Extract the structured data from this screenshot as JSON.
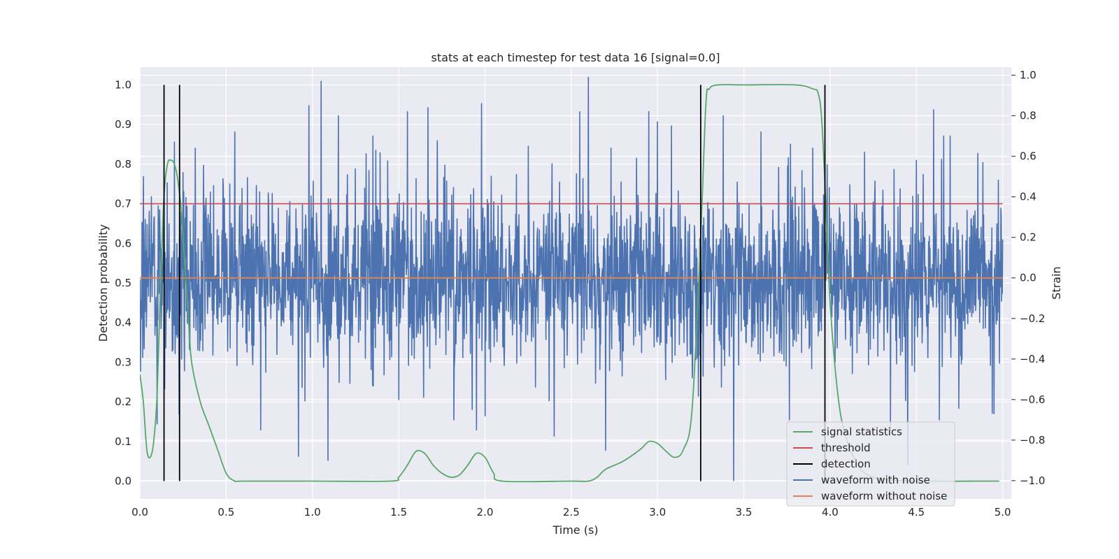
{
  "chart_data": {
    "type": "line",
    "title": "stats at each timestep for test data 16 [signal=0.0]",
    "xlabel": "Time (s)",
    "ylabel_left": "Detection probability",
    "ylabel_right": "Strain",
    "xlim": [
      0.0,
      5.05
    ],
    "ylim_left": [
      -0.045,
      1.045
    ],
    "ylim_right": [
      -1.09,
      1.04
    ],
    "x_ticks": [
      "0.0",
      "0.5",
      "1.0",
      "1.5",
      "2.0",
      "2.5",
      "3.0",
      "3.5",
      "4.0",
      "4.5",
      "5.0"
    ],
    "y_ticks_left": [
      "0.0",
      "0.1",
      "0.2",
      "0.3",
      "0.4",
      "0.5",
      "0.6",
      "0.7",
      "0.8",
      "0.9",
      "1.0"
    ],
    "y_ticks_right": [
      "−1.0",
      "−0.8",
      "−0.6",
      "−0.4",
      "−0.2",
      "0.0",
      "0.2",
      "0.4",
      "0.6",
      "0.8",
      "1.0"
    ],
    "grid": true,
    "legend_position": "lower right",
    "series": [
      {
        "name": "signal statistics",
        "axis": "left",
        "color": "#55a868",
        "x": [
          0.0,
          0.02,
          0.04,
          0.06,
          0.08,
          0.1,
          0.12,
          0.14,
          0.16,
          0.18,
          0.2,
          0.22,
          0.24,
          0.26,
          0.28,
          0.3,
          0.35,
          0.4,
          0.45,
          0.5,
          0.55,
          0.6,
          1.0,
          1.45,
          1.5,
          1.55,
          1.6,
          1.65,
          1.7,
          1.75,
          1.8,
          1.85,
          1.9,
          1.95,
          2.0,
          2.05,
          2.1,
          2.5,
          2.6,
          2.65,
          2.7,
          2.8,
          2.9,
          2.95,
          3.0,
          3.05,
          3.1,
          3.15,
          3.2,
          3.25,
          3.28,
          3.3,
          3.35,
          3.5,
          3.8,
          3.9,
          3.93,
          3.95,
          3.97,
          4.0,
          4.05,
          4.1,
          4.15,
          4.2,
          4.3,
          4.5,
          4.9,
          4.98
        ],
        "values": [
          0.27,
          0.2,
          0.08,
          0.06,
          0.1,
          0.22,
          0.5,
          0.72,
          0.8,
          0.81,
          0.8,
          0.76,
          0.68,
          0.55,
          0.42,
          0.3,
          0.2,
          0.14,
          0.08,
          0.02,
          0.0,
          0.0,
          0.0,
          0.0,
          0.01,
          0.04,
          0.075,
          0.07,
          0.04,
          0.02,
          0.01,
          0.015,
          0.04,
          0.07,
          0.06,
          0.02,
          0.0,
          0.0,
          0.0,
          0.01,
          0.03,
          0.05,
          0.08,
          0.1,
          0.095,
          0.075,
          0.06,
          0.08,
          0.18,
          0.62,
          0.95,
          0.99,
          1.0,
          1.0,
          1.0,
          0.99,
          0.98,
          0.92,
          0.75,
          0.45,
          0.2,
          0.1,
          0.05,
          0.02,
          0.005,
          0.0,
          0.0,
          0.0
        ]
      },
      {
        "name": "threshold",
        "axis": "left",
        "color": "#c44e52",
        "x": [
          0.0,
          5.0
        ],
        "values": [
          0.7,
          0.7
        ]
      },
      {
        "name": "detection",
        "axis": "left",
        "color": "#000000",
        "vlines_x": [
          0.14,
          0.23,
          3.25,
          3.97
        ],
        "vlines_range": [
          0.0,
          1.0
        ]
      },
      {
        "name": "waveform with noise",
        "axis": "right",
        "color": "#4c72b0",
        "x_range": [
          0.0,
          5.0
        ],
        "envelope": [
          -1.0,
          1.0
        ],
        "typical_amplitude": 0.35,
        "x": [
          0.02,
          0.1,
          0.2,
          0.25,
          0.32,
          0.55,
          0.7,
          0.92,
          0.98,
          1.05,
          1.09,
          1.15,
          1.35,
          1.5,
          1.55,
          1.67,
          1.82,
          1.95,
          1.98,
          2.0,
          2.25,
          2.4,
          2.55,
          2.6,
          2.7,
          2.73,
          2.95,
          3.0,
          3.08,
          3.38,
          3.44,
          3.6,
          3.77,
          3.9,
          4.2,
          4.35,
          4.45,
          4.5,
          4.6,
          4.95
        ],
        "values": [
          0.5,
          -0.72,
          0.67,
          0.52,
          0.64,
          0.72,
          -0.75,
          -0.88,
          0.85,
          0.97,
          -0.9,
          0.8,
          0.7,
          -0.6,
          0.82,
          0.84,
          -0.7,
          -0.75,
          0.86,
          -0.68,
          0.65,
          -0.78,
          0.82,
          0.99,
          -0.85,
          0.64,
          0.82,
          0.77,
          0.75,
          0.8,
          -1.0,
          0.72,
          0.66,
          0.64,
          0.62,
          -0.75,
          -0.92,
          0.58,
          0.83,
          -0.67
        ]
      },
      {
        "name": "waveform without noise",
        "axis": "right",
        "color": "#dd8452",
        "x": [
          0.0,
          5.0
        ],
        "values": [
          0.0,
          0.0
        ]
      }
    ]
  }
}
